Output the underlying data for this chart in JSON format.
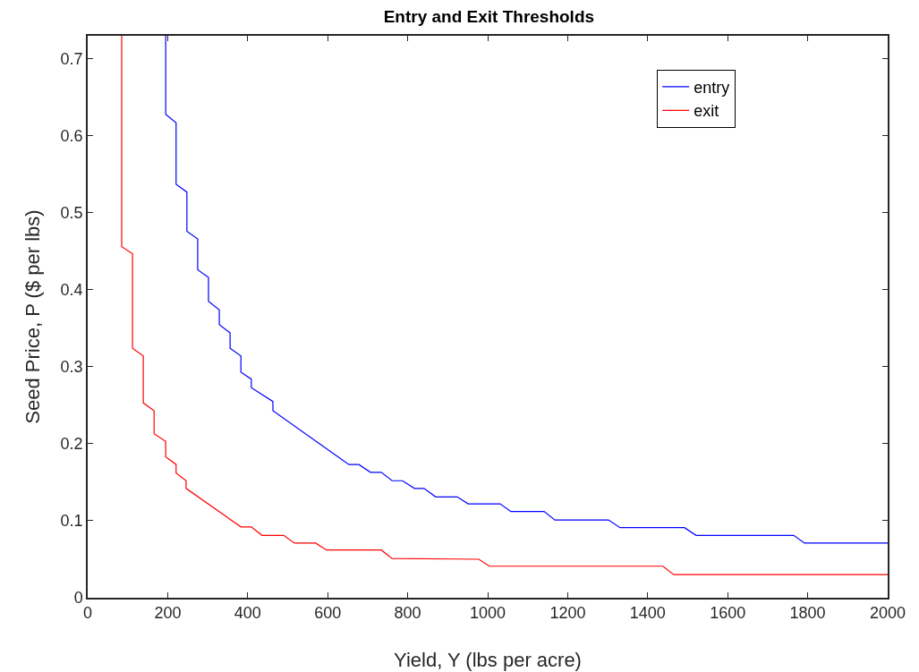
{
  "chart_data": {
    "type": "line",
    "title": "Entry and Exit Thresholds",
    "xlabel": "Yield, Y (lbs per acre)",
    "ylabel": "Seed Price, P ($ per lbs)",
    "xlim": [
      0,
      2000
    ],
    "xticks": [
      0,
      200,
      400,
      600,
      800,
      1000,
      1200,
      1400,
      1600,
      1800,
      2000
    ],
    "ylim": [
      0,
      0.73
    ],
    "yticks": [
      0,
      0.1,
      0.2,
      0.3,
      0.4,
      0.5,
      0.6,
      0.7
    ],
    "grid": false,
    "legend": "top right",
    "marker": "none",
    "line_style": "solid",
    "series": [
      {
        "name": "entry",
        "color": "#0000ff",
        "x": [
          195,
          195,
          221,
          221,
          248,
          248,
          275,
          275,
          302,
          302,
          329,
          329,
          356,
          356,
          383,
          383,
          409,
          409,
          463,
          463,
          653,
          678,
          707,
          734,
          761,
          787,
          817,
          841,
          870,
          924,
          951,
          1031,
          1058,
          1141,
          1168,
          1302,
          1331,
          1492,
          1521,
          1765,
          1792,
          2000
        ],
        "values": [
          0.73,
          0.628,
          0.617,
          0.537,
          0.527,
          0.476,
          0.466,
          0.426,
          0.416,
          0.385,
          0.374,
          0.355,
          0.344,
          0.324,
          0.314,
          0.293,
          0.284,
          0.273,
          0.255,
          0.243,
          0.173,
          0.173,
          0.163,
          0.163,
          0.152,
          0.152,
          0.142,
          0.142,
          0.131,
          0.131,
          0.122,
          0.122,
          0.112,
          0.112,
          0.101,
          0.101,
          0.091,
          0.091,
          0.081,
          0.081,
          0.071,
          0.071
        ]
      },
      {
        "name": "exit",
        "color": "#ff0000",
        "x": [
          85,
          85,
          112,
          112,
          139,
          139,
          166,
          166,
          195,
          195,
          221,
          221,
          246,
          246,
          383,
          409,
          436,
          490,
          517,
          570,
          597,
          734,
          761,
          978,
          1004,
          1438,
          1465,
          2000
        ],
        "values": [
          0.73,
          0.456,
          0.447,
          0.324,
          0.314,
          0.253,
          0.243,
          0.213,
          0.203,
          0.183,
          0.173,
          0.162,
          0.152,
          0.142,
          0.092,
          0.092,
          0.081,
          0.081,
          0.071,
          0.071,
          0.062,
          0.062,
          0.051,
          0.05,
          0.041,
          0.041,
          0.03,
          0.03
        ]
      }
    ]
  }
}
